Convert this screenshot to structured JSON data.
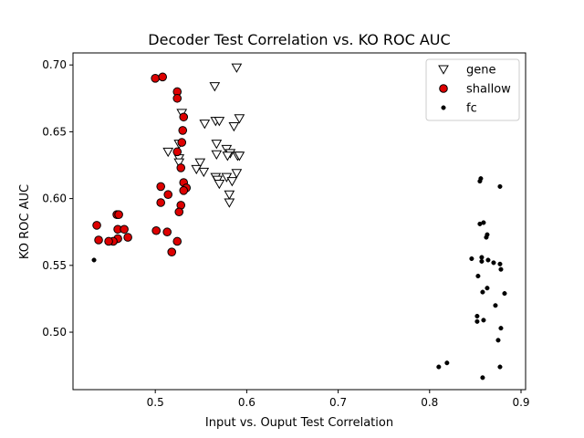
{
  "chart_data": {
    "type": "scatter",
    "title": "Decoder Test Correlation vs. KO ROC AUC",
    "xlabel": "Input vs. Ouput Test Correlation",
    "ylabel": "KO ROC AUC",
    "xlim": [
      0.41,
      0.905
    ],
    "ylim": [
      0.457,
      0.709
    ],
    "x_ticks": [
      0.5,
      0.6,
      0.7,
      0.8,
      0.9
    ],
    "x_tick_labels": [
      "0.5",
      "0.6",
      "0.7",
      "0.8",
      "0.9"
    ],
    "y_ticks": [
      0.5,
      0.55,
      0.6,
      0.65,
      0.7
    ],
    "y_tick_labels": [
      "0.50",
      "0.55",
      "0.60",
      "0.65",
      "0.70"
    ],
    "grid": false,
    "legend_position": "top-right",
    "series": [
      {
        "name": "gene",
        "marker": "triangle-down",
        "color": "#ffffff",
        "edge_color": "#000000",
        "points": [
          [
            0.589,
            0.698
          ],
          [
            0.565,
            0.684
          ],
          [
            0.529,
            0.664
          ],
          [
            0.592,
            0.66
          ],
          [
            0.566,
            0.658
          ],
          [
            0.57,
            0.658
          ],
          [
            0.554,
            0.656
          ],
          [
            0.586,
            0.654
          ],
          [
            0.526,
            0.641
          ],
          [
            0.567,
            0.641
          ],
          [
            0.578,
            0.637
          ],
          [
            0.514,
            0.635
          ],
          [
            0.582,
            0.634
          ],
          [
            0.567,
            0.633
          ],
          [
            0.579,
            0.632
          ],
          [
            0.59,
            0.632
          ],
          [
            0.592,
            0.632
          ],
          [
            0.526,
            0.63
          ],
          [
            0.526,
            0.627
          ],
          [
            0.549,
            0.627
          ],
          [
            0.545,
            0.622
          ],
          [
            0.553,
            0.62
          ],
          [
            0.589,
            0.619
          ],
          [
            0.566,
            0.616
          ],
          [
            0.578,
            0.616
          ],
          [
            0.568,
            0.614
          ],
          [
            0.584,
            0.613
          ],
          [
            0.57,
            0.611
          ],
          [
            0.581,
            0.603
          ],
          [
            0.581,
            0.597
          ]
        ]
      },
      {
        "name": "shallow",
        "marker": "circle",
        "color": "#dd0000",
        "edge_color": "#000000",
        "points": [
          [
            0.5,
            0.69
          ],
          [
            0.508,
            0.691
          ],
          [
            0.524,
            0.68
          ],
          [
            0.524,
            0.675
          ],
          [
            0.531,
            0.661
          ],
          [
            0.53,
            0.651
          ],
          [
            0.529,
            0.642
          ],
          [
            0.524,
            0.635
          ],
          [
            0.528,
            0.623
          ],
          [
            0.531,
            0.612
          ],
          [
            0.534,
            0.608
          ],
          [
            0.531,
            0.606
          ],
          [
            0.506,
            0.609
          ],
          [
            0.514,
            0.603
          ],
          [
            0.506,
            0.597
          ],
          [
            0.528,
            0.595
          ],
          [
            0.526,
            0.59
          ],
          [
            0.458,
            0.588
          ],
          [
            0.46,
            0.588
          ],
          [
            0.436,
            0.58
          ],
          [
            0.459,
            0.577
          ],
          [
            0.466,
            0.577
          ],
          [
            0.501,
            0.576
          ],
          [
            0.513,
            0.575
          ],
          [
            0.47,
            0.571
          ],
          [
            0.459,
            0.57
          ],
          [
            0.438,
            0.569
          ],
          [
            0.454,
            0.568
          ],
          [
            0.449,
            0.568
          ],
          [
            0.524,
            0.568
          ],
          [
            0.518,
            0.56
          ]
        ]
      },
      {
        "name": "fc",
        "marker": "dot",
        "color": "#000000",
        "edge_color": "#000000",
        "points": [
          [
            0.433,
            0.554
          ],
          [
            0.856,
            0.615
          ],
          [
            0.855,
            0.613
          ],
          [
            0.877,
            0.609
          ],
          [
            0.859,
            0.582
          ],
          [
            0.855,
            0.581
          ],
          [
            0.863,
            0.573
          ],
          [
            0.862,
            0.571
          ],
          [
            0.857,
            0.556
          ],
          [
            0.846,
            0.555
          ],
          [
            0.857,
            0.553
          ],
          [
            0.864,
            0.554
          ],
          [
            0.87,
            0.552
          ],
          [
            0.877,
            0.551
          ],
          [
            0.878,
            0.547
          ],
          [
            0.853,
            0.542
          ],
          [
            0.863,
            0.533
          ],
          [
            0.858,
            0.53
          ],
          [
            0.882,
            0.529
          ],
          [
            0.872,
            0.52
          ],
          [
            0.852,
            0.512
          ],
          [
            0.852,
            0.508
          ],
          [
            0.859,
            0.509
          ],
          [
            0.878,
            0.503
          ],
          [
            0.875,
            0.494
          ],
          [
            0.819,
            0.477
          ],
          [
            0.81,
            0.474
          ],
          [
            0.877,
            0.474
          ],
          [
            0.858,
            0.466
          ]
        ]
      }
    ]
  }
}
